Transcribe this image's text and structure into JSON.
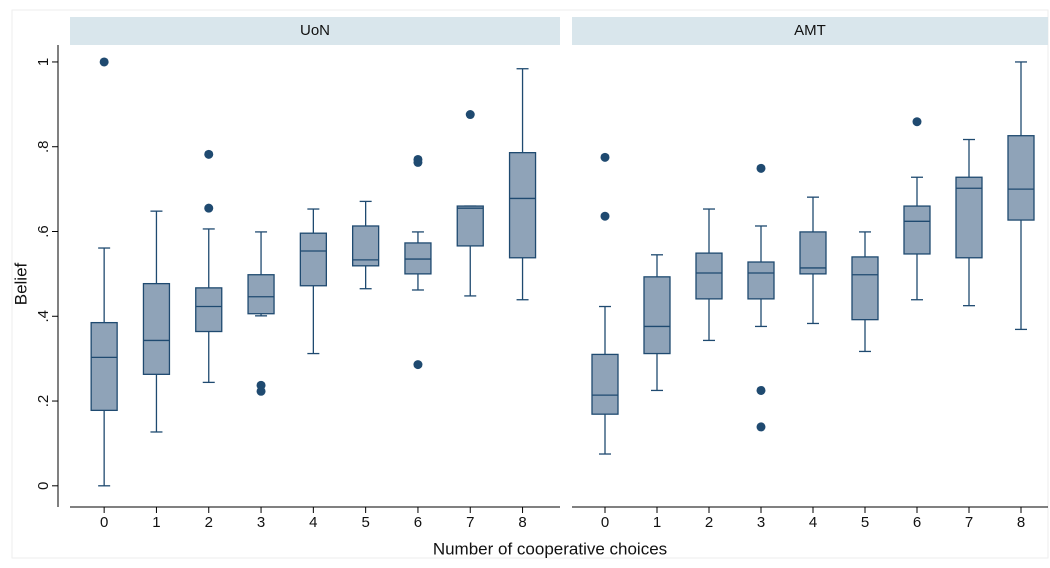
{
  "chart_data": {
    "type": "box",
    "ylabel": "Belief",
    "xlabel": "Number of cooperative choices",
    "categories": [
      0,
      1,
      2,
      3,
      4,
      5,
      6,
      7,
      8
    ],
    "ylim": [
      -0.05,
      1.04
    ],
    "yticks": [
      0,
      {
        "value": 0.2,
        "label": ".2"
      },
      {
        "value": 0.4,
        "label": ".4"
      },
      {
        "value": 0.6,
        "label": ".6"
      },
      {
        "value": 0.8,
        "label": ".8"
      },
      1
    ],
    "color": "#8fa3b8",
    "line_color": "#1f4a70",
    "panels": [
      {
        "title": "UoN",
        "whisker_low": [
          0,
          0.127,
          0.244,
          0.401,
          0.312,
          0.465,
          0.462,
          0.448,
          0.439
        ],
        "q1": [
          0.178,
          0.263,
          0.364,
          0.406,
          0.472,
          0.519,
          0.5,
          0.566,
          0.538
        ],
        "median": [
          0.303,
          0.343,
          0.423,
          0.446,
          0.554,
          0.533,
          0.535,
          0.655,
          0.678
        ],
        "q3": [
          0.385,
          0.477,
          0.467,
          0.498,
          0.596,
          0.613,
          0.573,
          0.66,
          0.786
        ],
        "whisker_high": [
          0.561,
          0.648,
          0.606,
          0.599,
          0.653,
          0.671,
          0.599,
          0.66,
          0.984
        ],
        "outliers": [
          [
            1.0
          ],
          [],
          [
            0.655,
            0.782
          ],
          [
            0.237,
            0.223
          ],
          [],
          [],
          [
            0.77,
            0.763,
            0.286
          ],
          [
            0.876
          ],
          []
        ]
      },
      {
        "title": "AMT",
        "whisker_low": [
          0.075,
          0.225,
          0.343,
          0.376,
          0.383,
          0.317,
          0.439,
          0.425,
          0.369
        ],
        "q1": [
          0.169,
          0.312,
          0.441,
          0.441,
          0.5,
          0.392,
          0.547,
          0.538,
          0.627
        ],
        "median": [
          0.214,
          0.376,
          0.502,
          0.502,
          0.514,
          0.498,
          0.624,
          0.702,
          0.7
        ],
        "q3": [
          0.31,
          0.493,
          0.549,
          0.528,
          0.599,
          0.54,
          0.66,
          0.728,
          0.826
        ],
        "whisker_high": [
          0.423,
          0.545,
          0.653,
          0.613,
          0.681,
          0.599,
          0.728,
          0.817,
          1.0
        ],
        "outliers": [
          [
            0.636,
            0.775
          ],
          [],
          [],
          [
            0.749,
            0.225,
            0.139
          ],
          [],
          [],
          [
            0.859
          ],
          [],
          []
        ]
      }
    ]
  }
}
